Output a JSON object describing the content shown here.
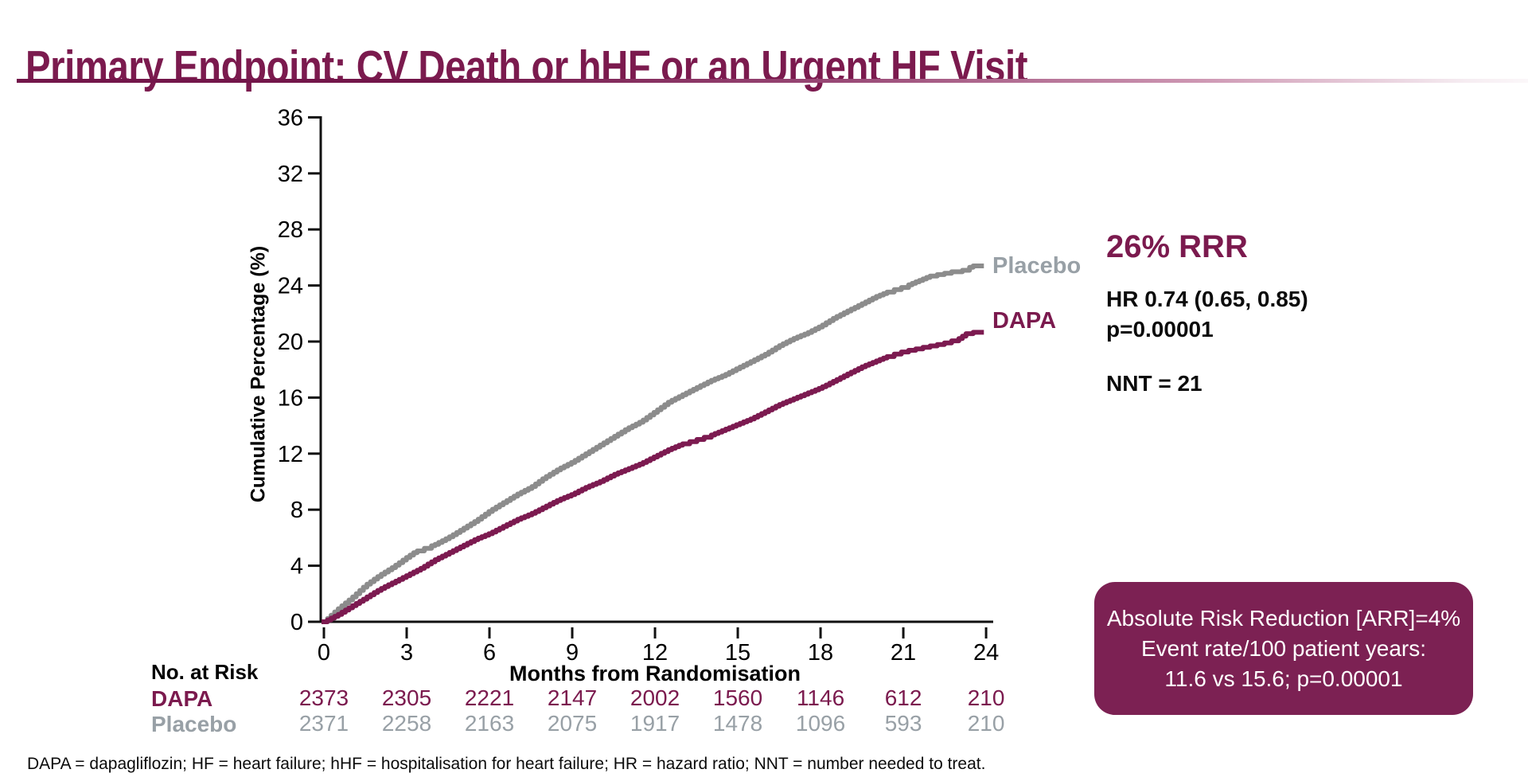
{
  "title": "Primary Endpoint: CV Death or hHF or an Urgent HF Visit",
  "colors": {
    "maroon": "#7B1A4E",
    "curve_dapa": "#7C1A50",
    "curve_placebo": "#8C8C8C",
    "gray_text": "#98A0A6",
    "box_bg": "#7C2153",
    "axis": "#111111"
  },
  "stats": {
    "rrr": "26% RRR",
    "hr": "HR 0.74 (0.65, 0.85)",
    "p": "p=0.00001",
    "nnt": "NNT = 21"
  },
  "arr_box": {
    "line1": "Absolute Risk Reduction [ARR]=4%",
    "line2": "Event rate/100 patient years:",
    "line3": "11.6 vs 15.6; p=0.00001"
  },
  "footnote": "DAPA = dapagliflozin; HF = heart failure; hHF = hospitalisation for heart failure; HR = hazard ratio; NNT = number needed to treat.",
  "chart_data": {
    "type": "line",
    "title": "",
    "xlabel": "Months from Randomisation",
    "ylabel": "Cumulative Percentage (%)",
    "xlim": [
      0,
      24
    ],
    "ylim": [
      0,
      36
    ],
    "x_ticks": [
      0,
      3,
      6,
      9,
      12,
      15,
      18,
      21,
      24
    ],
    "y_ticks": [
      0,
      4,
      8,
      12,
      16,
      20,
      24,
      28,
      32,
      36
    ],
    "grid": false,
    "legend_position": "end-of-line-labels",
    "series": [
      {
        "name": "Placebo",
        "color": "#8C8C8C",
        "points": [
          [
            0,
            0
          ],
          [
            0.5,
            0.9
          ],
          [
            1,
            1.7
          ],
          [
            1.5,
            2.6
          ],
          [
            2,
            3.3
          ],
          [
            2.5,
            3.9
          ],
          [
            3,
            4.6
          ],
          [
            3.3,
            5.0
          ],
          [
            4,
            5.5
          ],
          [
            4.5,
            6.0
          ],
          [
            5,
            6.6
          ],
          [
            5.5,
            7.2
          ],
          [
            6,
            7.9
          ],
          [
            6.5,
            8.5
          ],
          [
            7,
            9.1
          ],
          [
            7.5,
            9.6
          ],
          [
            8,
            10.3
          ],
          [
            8.5,
            10.9
          ],
          [
            9,
            11.4
          ],
          [
            9.5,
            12.0
          ],
          [
            10,
            12.6
          ],
          [
            10.5,
            13.2
          ],
          [
            11,
            13.8
          ],
          [
            11.5,
            14.3
          ],
          [
            12,
            15.0
          ],
          [
            12.5,
            15.7
          ],
          [
            13,
            16.2
          ],
          [
            13.5,
            16.7
          ],
          [
            14,
            17.2
          ],
          [
            14.5,
            17.6
          ],
          [
            15,
            18.1
          ],
          [
            15.5,
            18.6
          ],
          [
            16,
            19.1
          ],
          [
            16.5,
            19.7
          ],
          [
            17,
            20.2
          ],
          [
            17.5,
            20.6
          ],
          [
            18,
            21.1
          ],
          [
            18.5,
            21.7
          ],
          [
            19,
            22.2
          ],
          [
            19.5,
            22.7
          ],
          [
            20,
            23.2
          ],
          [
            20.5,
            23.6
          ],
          [
            21,
            23.9
          ],
          [
            21.5,
            24.3
          ],
          [
            22,
            24.7
          ],
          [
            22.3,
            24.8
          ],
          [
            22.8,
            25.0
          ],
          [
            23.2,
            25.1
          ],
          [
            23.5,
            25.4
          ],
          [
            24,
            25.4
          ]
        ]
      },
      {
        "name": "DAPA",
        "color": "#7C1A50",
        "points": [
          [
            0,
            0
          ],
          [
            0.5,
            0.5
          ],
          [
            1,
            1.1
          ],
          [
            1.5,
            1.7
          ],
          [
            2,
            2.3
          ],
          [
            2.5,
            2.8
          ],
          [
            3,
            3.3
          ],
          [
            3.5,
            3.8
          ],
          [
            4,
            4.4
          ],
          [
            4.5,
            4.9
          ],
          [
            5,
            5.4
          ],
          [
            5.5,
            5.9
          ],
          [
            6,
            6.3
          ],
          [
            6.5,
            6.8
          ],
          [
            7,
            7.3
          ],
          [
            7.5,
            7.7
          ],
          [
            8,
            8.2
          ],
          [
            8.5,
            8.7
          ],
          [
            9,
            9.1
          ],
          [
            9.5,
            9.6
          ],
          [
            10,
            10.0
          ],
          [
            10.5,
            10.5
          ],
          [
            11,
            10.9
          ],
          [
            11.5,
            11.3
          ],
          [
            12,
            11.8
          ],
          [
            12.5,
            12.3
          ],
          [
            13,
            12.7
          ],
          [
            13.5,
            13.0
          ],
          [
            14,
            13.3
          ],
          [
            14.5,
            13.7
          ],
          [
            15,
            14.1
          ],
          [
            15.5,
            14.5
          ],
          [
            16,
            15.0
          ],
          [
            16.5,
            15.5
          ],
          [
            17,
            15.9
          ],
          [
            17.5,
            16.3
          ],
          [
            18,
            16.7
          ],
          [
            18.5,
            17.2
          ],
          [
            19,
            17.7
          ],
          [
            19.5,
            18.2
          ],
          [
            20,
            18.6
          ],
          [
            20.5,
            19.0
          ],
          [
            21,
            19.3
          ],
          [
            21.5,
            19.5
          ],
          [
            22,
            19.7
          ],
          [
            22.5,
            19.9
          ],
          [
            23,
            20.2
          ],
          [
            23.3,
            20.6
          ],
          [
            23.7,
            20.7
          ],
          [
            24,
            20.7
          ]
        ]
      }
    ],
    "risk_table": {
      "heading": "No. at Risk",
      "rows": [
        {
          "name": "DAPA",
          "color": "#7B1A4E",
          "values": [
            "2373",
            "2305",
            "2221",
            "2147",
            "2002",
            "1560",
            "1146",
            "612",
            "210"
          ]
        },
        {
          "name": "Placebo",
          "color": "#98A0A6",
          "values": [
            "2371",
            "2258",
            "2163",
            "2075",
            "1917",
            "1478",
            "1096",
            "593",
            "210"
          ]
        }
      ]
    }
  }
}
